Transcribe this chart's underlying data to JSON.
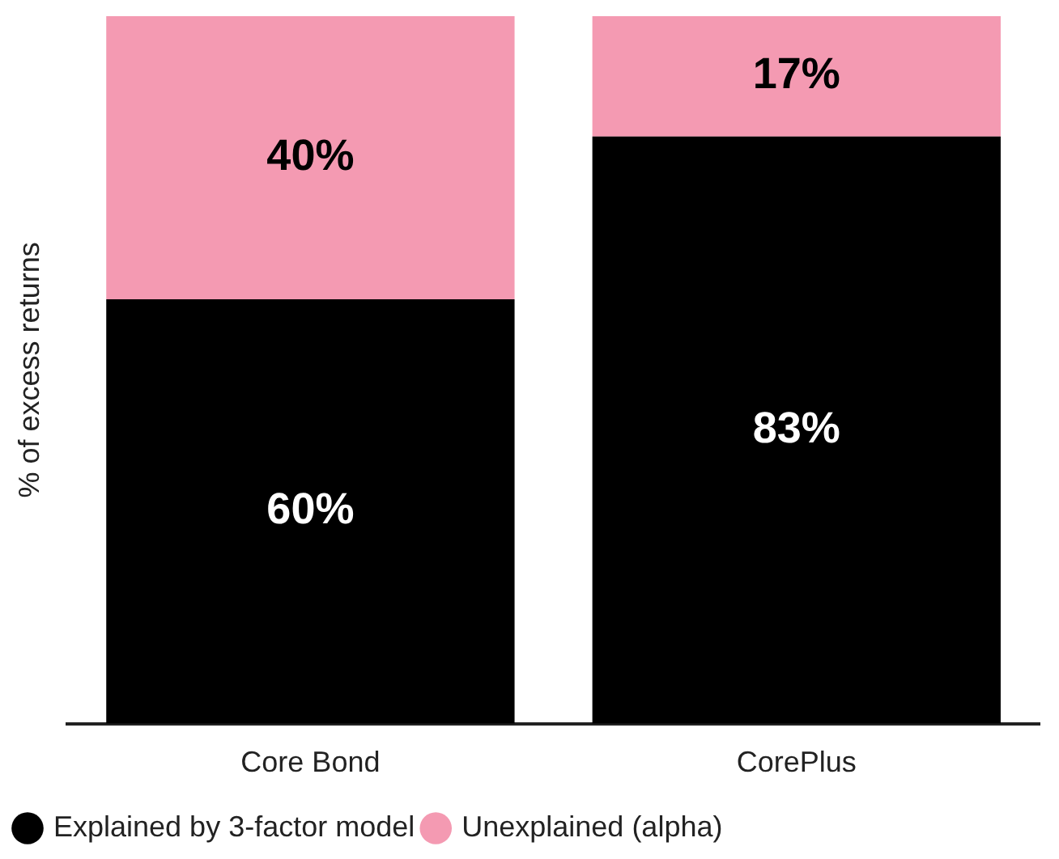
{
  "chart_data": {
    "type": "bar",
    "stacked": true,
    "ylabel": "% of excess returns",
    "categories": [
      "Core Bond",
      "CorePlus"
    ],
    "series": [
      {
        "name": "Explained by 3-factor model",
        "color": "#000000",
        "values": [
          60,
          83
        ],
        "value_labels": [
          "60%",
          "83%"
        ]
      },
      {
        "name": "Unexplained (alpha)",
        "color": "#f49ab2",
        "values": [
          40,
          17
        ],
        "value_labels": [
          "40%",
          "17%"
        ]
      }
    ],
    "legend": "bottom",
    "grid": false
  }
}
